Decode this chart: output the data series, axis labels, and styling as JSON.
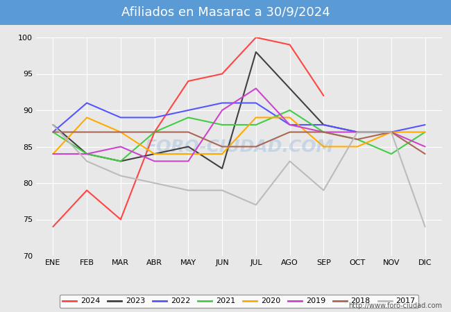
{
  "title": "Afiliados en Masarac a 30/9/2024",
  "background_color": "#e8e8e8",
  "plot_bg_color": "#e8e8e8",
  "title_bar_color": "#5b9bd5",
  "months": [
    "ENE",
    "FEB",
    "MAR",
    "ABR",
    "MAY",
    "JUN",
    "JUL",
    "AGO",
    "SEP",
    "OCT",
    "NOV",
    "DIC"
  ],
  "ylim": [
    70,
    100
  ],
  "yticks": [
    70,
    75,
    80,
    85,
    90,
    95,
    100
  ],
  "series": [
    {
      "label": "2024",
      "color": "#ff4444",
      "data": [
        74,
        79,
        75,
        87,
        94,
        95,
        100,
        99,
        92,
        null,
        null,
        null
      ]
    },
    {
      "label": "2023",
      "color": "#404040",
      "data": [
        88,
        84,
        83,
        84,
        85,
        82,
        98,
        93,
        88,
        87,
        87,
        null
      ]
    },
    {
      "label": "2022",
      "color": "#5555ff",
      "data": [
        87,
        91,
        89,
        89,
        90,
        91,
        91,
        88,
        88,
        87,
        87,
        88
      ]
    },
    {
      "label": "2021",
      "color": "#44cc44",
      "data": [
        87,
        84,
        83,
        87,
        89,
        88,
        88,
        90,
        87,
        86,
        84,
        87
      ]
    },
    {
      "label": "2020",
      "color": "#ffaa00",
      "data": [
        84,
        89,
        87,
        84,
        84,
        84,
        89,
        89,
        85,
        85,
        87,
        87
      ]
    },
    {
      "label": "2019",
      "color": "#cc44cc",
      "data": [
        84,
        84,
        85,
        83,
        83,
        90,
        93,
        88,
        87,
        87,
        87,
        85
      ]
    },
    {
      "label": "2018",
      "color": "#aa6655",
      "data": [
        87,
        87,
        87,
        87,
        87,
        85,
        85,
        87,
        87,
        86,
        87,
        84
      ]
    },
    {
      "label": "2017",
      "color": "#bbbbbb",
      "data": [
        88,
        83,
        81,
        80,
        79,
        79,
        77,
        83,
        79,
        87,
        87,
        74
      ]
    }
  ],
  "watermark": "FORO-CIUDAD.COM",
  "url": "http://www.foro-ciudad.com"
}
